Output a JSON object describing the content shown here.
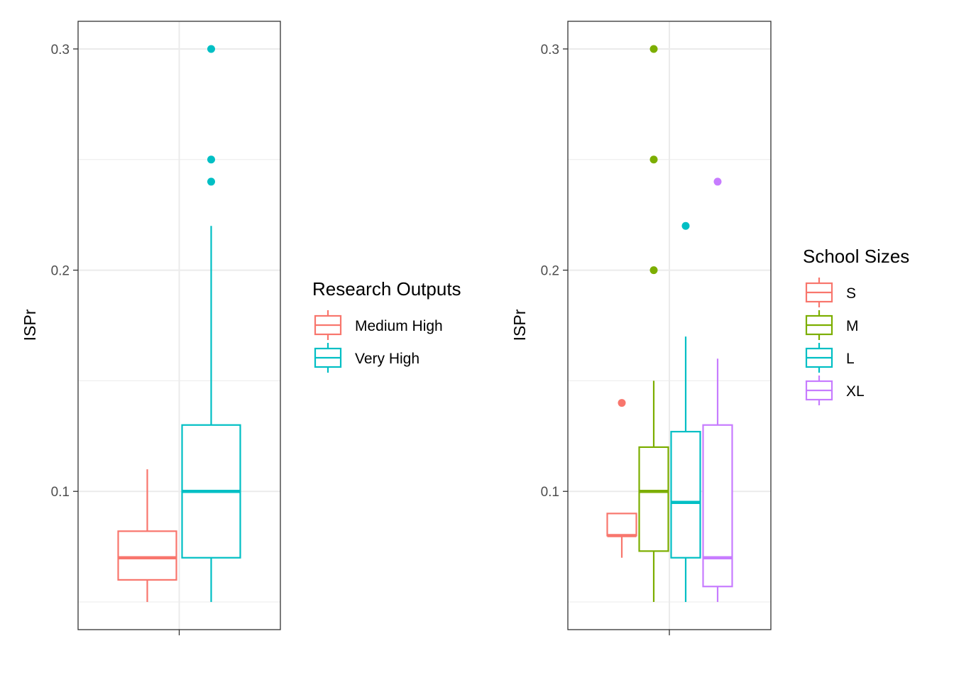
{
  "chart_data": [
    {
      "type": "boxplot",
      "ylabel": "ISPr",
      "xlabel": "",
      "ylim": [
        0.0375,
        0.3125
      ],
      "yticks": [
        0.1,
        0.2,
        0.3
      ],
      "ytick_labels": [
        "0.1",
        "0.2",
        "0.3"
      ],
      "grid": true,
      "legend": {
        "title": "Research Outputs",
        "placement": "right",
        "entries": [
          "Medium High",
          "Very High"
        ]
      },
      "series": [
        {
          "label": "Medium High",
          "color": "#F8766D",
          "whisker_low": 0.05,
          "q1": 0.06,
          "median": 0.07,
          "q3": 0.082,
          "whisker_high": 0.11,
          "outliers": []
        },
        {
          "label": "Very High",
          "color": "#00BFC4",
          "whisker_low": 0.05,
          "q1": 0.07,
          "median": 0.1,
          "q3": 0.13,
          "whisker_high": 0.22,
          "outliers": [
            0.24,
            0.25,
            0.3
          ]
        }
      ]
    },
    {
      "type": "boxplot",
      "ylabel": "ISPr",
      "xlabel": "",
      "ylim": [
        0.0375,
        0.3125
      ],
      "yticks": [
        0.1,
        0.2,
        0.3
      ],
      "ytick_labels": [
        "0.1",
        "0.2",
        "0.3"
      ],
      "grid": true,
      "legend": {
        "title": "School Sizes",
        "placement": "right",
        "entries": [
          "S",
          "M",
          "L",
          "XL"
        ]
      },
      "series": [
        {
          "label": "S",
          "color": "#F8766D",
          "whisker_low": 0.07,
          "q1": 0.08,
          "median": 0.08,
          "q3": 0.09,
          "whisker_high": 0.09,
          "outliers": [
            0.14
          ]
        },
        {
          "label": "M",
          "color": "#7CAE00",
          "whisker_low": 0.05,
          "q1": 0.073,
          "median": 0.1,
          "q3": 0.12,
          "whisker_high": 0.15,
          "outliers": [
            0.2,
            0.25,
            0.3
          ]
        },
        {
          "label": "L",
          "color": "#00BFC4",
          "whisker_low": 0.05,
          "q1": 0.07,
          "median": 0.095,
          "q3": 0.127,
          "whisker_high": 0.17,
          "outliers": [
            0.22
          ]
        },
        {
          "label": "XL",
          "color": "#C77CFF",
          "whisker_low": 0.05,
          "q1": 0.057,
          "median": 0.07,
          "q3": 0.13,
          "whisker_high": 0.16,
          "outliers": [
            0.24
          ]
        }
      ]
    }
  ]
}
